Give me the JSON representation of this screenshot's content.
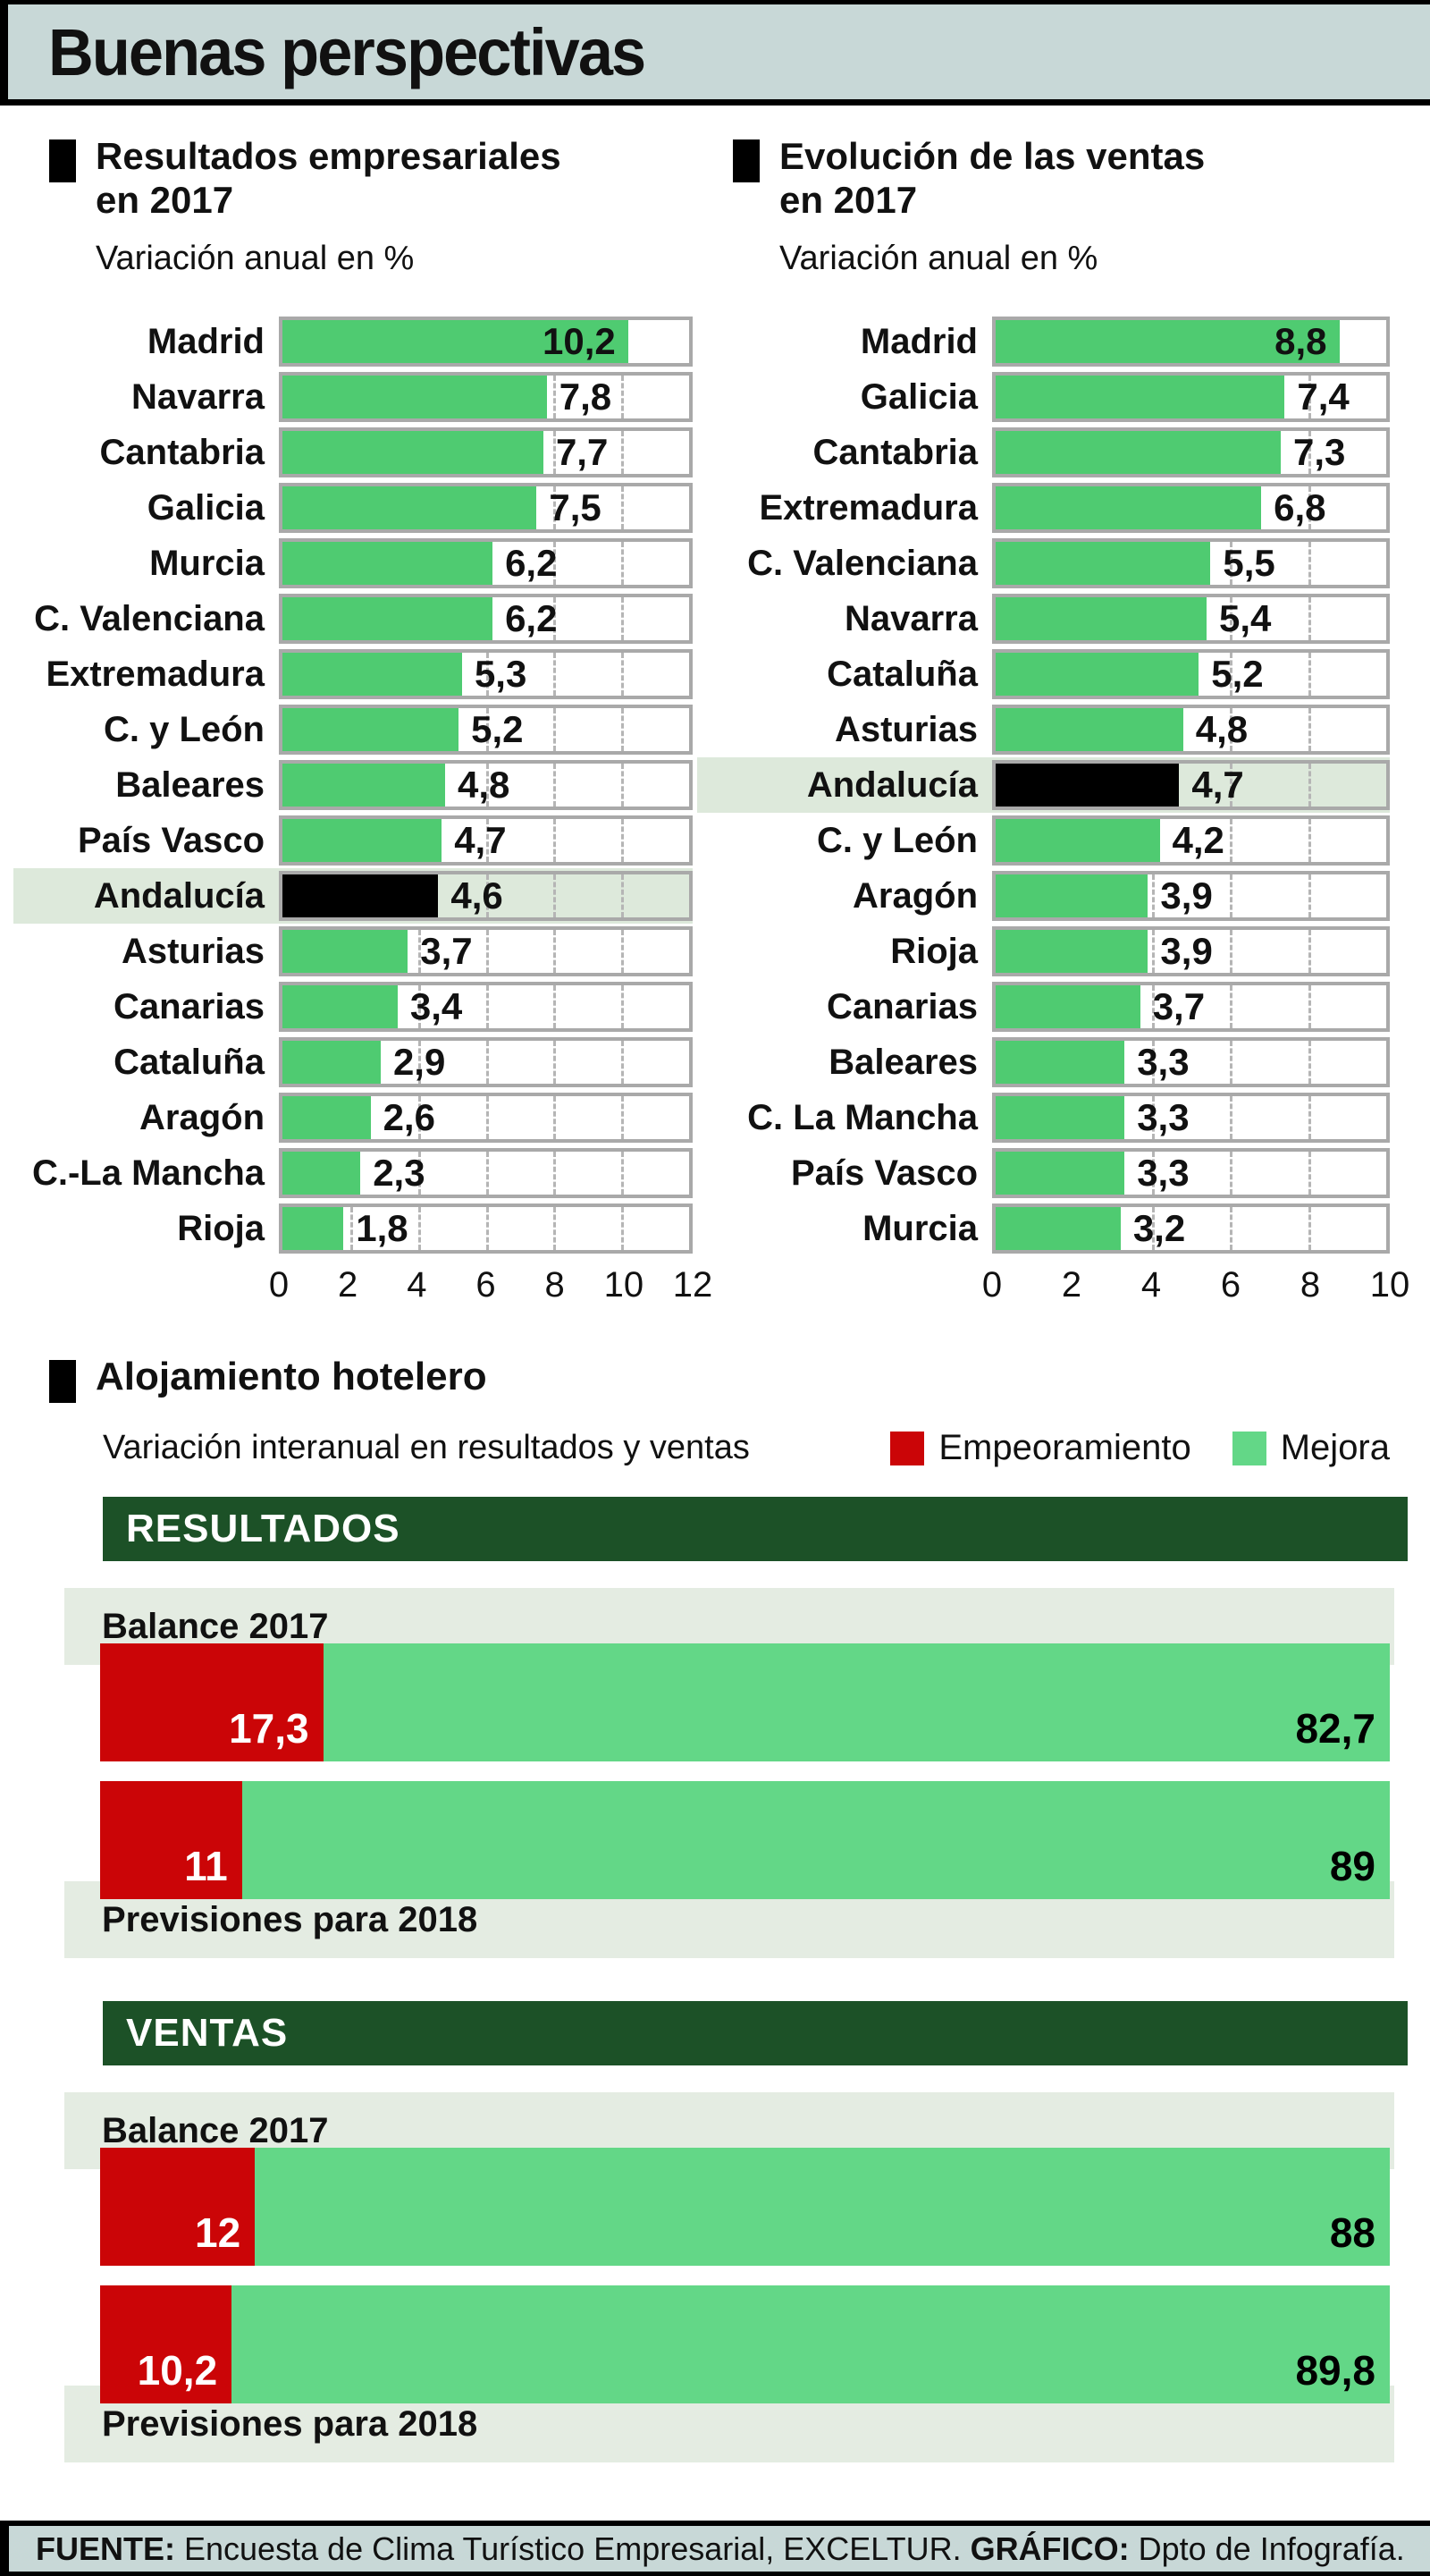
{
  "title": "Buenas perspectivas",
  "colors": {
    "band_background": "#c8d8d7",
    "bar_green": "#4fcb71",
    "stacked_green": "#63d787",
    "stacked_red": "#cb0507",
    "highlight_row": "#dde9db",
    "dark_green_header": "#1c5127",
    "highlight_bar": "#000000"
  },
  "chart_data": [
    {
      "type": "bar",
      "orientation": "horizontal",
      "title": "Resultados empresariales en 2017",
      "title_lines": [
        "Resultados empresariales",
        "en 2017"
      ],
      "subtitle": "Variación anual en %",
      "xlim": [
        0,
        12
      ],
      "ticks": [
        0,
        2,
        4,
        6,
        8,
        10,
        12
      ],
      "grid": "dashed-vertical",
      "highlight_category": "Andalucía",
      "rows": [
        {
          "label": "Madrid",
          "value": 10.2,
          "value_label": "10,2",
          "highlight": false
        },
        {
          "label": "Navarra",
          "value": 7.8,
          "value_label": "7,8",
          "highlight": false
        },
        {
          "label": "Cantabria",
          "value": 7.7,
          "value_label": "7,7",
          "highlight": false
        },
        {
          "label": "Galicia",
          "value": 7.5,
          "value_label": "7,5",
          "highlight": false
        },
        {
          "label": "Murcia",
          "value": 6.2,
          "value_label": "6,2",
          "highlight": false
        },
        {
          "label": "C. Valenciana",
          "value": 6.2,
          "value_label": "6,2",
          "highlight": false
        },
        {
          "label": "Extremadura",
          "value": 5.3,
          "value_label": "5,3",
          "highlight": false
        },
        {
          "label": "C. y León",
          "value": 5.2,
          "value_label": "5,2",
          "highlight": false
        },
        {
          "label": "Baleares",
          "value": 4.8,
          "value_label": "4,8",
          "highlight": false
        },
        {
          "label": "País Vasco",
          "value": 4.7,
          "value_label": "4,7",
          "highlight": false
        },
        {
          "label": "Andalucía",
          "value": 4.6,
          "value_label": "4,6",
          "highlight": true
        },
        {
          "label": "Asturias",
          "value": 3.7,
          "value_label": "3,7",
          "highlight": false
        },
        {
          "label": "Canarias",
          "value": 3.4,
          "value_label": "3,4",
          "highlight": false
        },
        {
          "label": "Cataluña",
          "value": 2.9,
          "value_label": "2,9",
          "highlight": false
        },
        {
          "label": "Aragón",
          "value": 2.6,
          "value_label": "2,6",
          "highlight": false
        },
        {
          "label": "C.-La Mancha",
          "value": 2.3,
          "value_label": "2,3",
          "highlight": false
        },
        {
          "label": "Rioja",
          "value": 1.8,
          "value_label": "1,8",
          "highlight": false
        }
      ]
    },
    {
      "type": "bar",
      "orientation": "horizontal",
      "title": "Evolución de las ventas en 2017",
      "title_lines": [
        "Evolución de las ventas",
        "en 2017"
      ],
      "subtitle": "Variación anual en %",
      "xlim": [
        0,
        10
      ],
      "ticks": [
        0,
        2,
        4,
        6,
        8,
        10
      ],
      "grid": "dashed-vertical",
      "highlight_category": "Andalucía",
      "rows": [
        {
          "label": "Madrid",
          "value": 8.8,
          "value_label": "8,8",
          "highlight": false
        },
        {
          "label": "Galicia",
          "value": 7.4,
          "value_label": "7,4",
          "highlight": false
        },
        {
          "label": "Cantabria",
          "value": 7.3,
          "value_label": "7,3",
          "highlight": false
        },
        {
          "label": "Extremadura",
          "value": 6.8,
          "value_label": "6,8",
          "highlight": false
        },
        {
          "label": "C. Valenciana",
          "value": 5.5,
          "value_label": "5,5",
          "highlight": false
        },
        {
          "label": "Navarra",
          "value": 5.4,
          "value_label": "5,4",
          "highlight": false
        },
        {
          "label": "Cataluña",
          "value": 5.2,
          "value_label": "5,2",
          "highlight": false
        },
        {
          "label": "Asturias",
          "value": 4.8,
          "value_label": "4,8",
          "highlight": false
        },
        {
          "label": "Andalucía",
          "value": 4.7,
          "value_label": "4,7",
          "highlight": true
        },
        {
          "label": "C. y León",
          "value": 4.2,
          "value_label": "4,2",
          "highlight": false
        },
        {
          "label": "Aragón",
          "value": 3.9,
          "value_label": "3,9",
          "highlight": false
        },
        {
          "label": "Rioja",
          "value": 3.9,
          "value_label": "3,9",
          "highlight": false
        },
        {
          "label": "Canarias",
          "value": 3.7,
          "value_label": "3,7",
          "highlight": false
        },
        {
          "label": "Baleares",
          "value": 3.3,
          "value_label": "3,3",
          "highlight": false
        },
        {
          "label": "C. La Mancha",
          "value": 3.3,
          "value_label": "3,3",
          "highlight": false
        },
        {
          "label": "País Vasco",
          "value": 3.3,
          "value_label": "3,3",
          "highlight": false
        },
        {
          "label": "Murcia",
          "value": 3.2,
          "value_label": "3,2",
          "highlight": false
        }
      ]
    },
    {
      "type": "stacked-bar",
      "orientation": "horizontal",
      "title": "Alojamiento hotelero",
      "subtitle": "Variación interanual en resultados y ventas",
      "legend": [
        {
          "label": "Empeoramiento",
          "color": "#cb0507"
        },
        {
          "label": "Mejora",
          "color": "#63d787"
        }
      ],
      "groups": [
        {
          "header": "RESULTADOS",
          "bars": [
            {
              "label": "Balance 2017",
              "label_position": "above",
              "series": [
                17.3,
                82.7
              ],
              "series_labels": [
                "17,3",
                "82,7"
              ]
            },
            {
              "label": "Previsiones para 2018",
              "label_position": "below",
              "series": [
                11,
                89
              ],
              "series_labels": [
                "11",
                "89"
              ]
            }
          ]
        },
        {
          "header": "VENTAS",
          "bars": [
            {
              "label": "Balance 2017",
              "label_position": "above",
              "series": [
                12,
                88
              ],
              "series_labels": [
                "12",
                "88"
              ]
            },
            {
              "label": "Previsiones para 2018",
              "label_position": "below",
              "series": [
                10.2,
                89.8
              ],
              "series_labels": [
                "10,2",
                "89,8"
              ]
            }
          ]
        }
      ]
    }
  ],
  "footer": {
    "source_label": "FUENTE:",
    "source_text": "Encuesta de Clima Turístico Empresarial, EXCELTUR.",
    "credit_label": "GRÁFICO:",
    "credit_text": "Dpto de Infografía."
  }
}
